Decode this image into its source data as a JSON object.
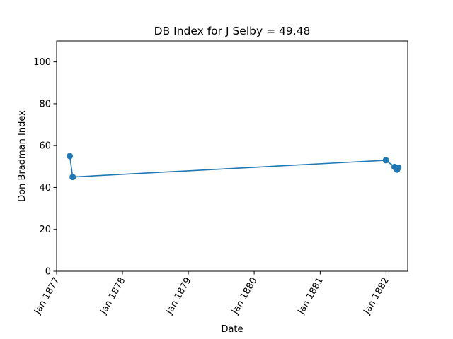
{
  "chart_data": {
    "type": "line",
    "title": "DB Index for J Selby = 49.48",
    "xlabel": "Date",
    "ylabel": "Don Bradman Index",
    "x_ticks": [
      {
        "date": "1877-01-01",
        "label": "Jan 1877"
      },
      {
        "date": "1878-01-01",
        "label": "Jan 1878"
      },
      {
        "date": "1879-01-01",
        "label": "Jan 1879"
      },
      {
        "date": "1880-01-01",
        "label": "Jan 1880"
      },
      {
        "date": "1881-01-01",
        "label": "Jan 1881"
      },
      {
        "date": "1882-01-01",
        "label": "Jan 1882"
      }
    ],
    "y_ticks": [
      0,
      20,
      40,
      60,
      80,
      100
    ],
    "xlim": [
      "1877-01-01",
      "1882-05-01"
    ],
    "ylim": [
      0,
      110
    ],
    "grid": false,
    "series": [
      {
        "color": "#1f77b4",
        "points": [
          {
            "x": "1877-03-15",
            "y": 55.0
          },
          {
            "x": "1877-03-31",
            "y": 45.0
          },
          {
            "x": "1881-12-31",
            "y": 53.0
          },
          {
            "x": "1882-02-17",
            "y": 49.8
          },
          {
            "x": "1882-03-03",
            "y": 48.5
          },
          {
            "x": "1882-03-10",
            "y": 49.48
          }
        ]
      }
    ]
  }
}
